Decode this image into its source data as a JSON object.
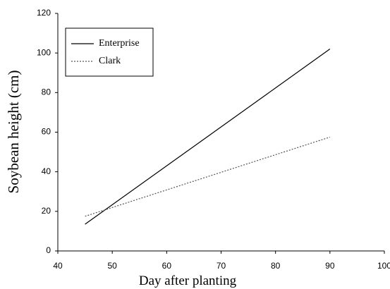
{
  "chart_data": {
    "type": "line",
    "x_label": "Day after planting",
    "y_label": "Soybean height (cm)",
    "series": [
      {
        "name": "Enterprise",
        "color": "#000000",
        "linestyle": "solid",
        "x": [
          45,
          90
        ],
        "values": [
          13.5,
          102
        ]
      },
      {
        "name": "Clark",
        "color": "#555555",
        "linestyle": "dotted",
        "x": [
          45,
          90
        ],
        "values": [
          17.5,
          57.5
        ]
      }
    ],
    "xlim": [
      40,
      100
    ],
    "xticks": [
      40,
      50,
      60,
      70,
      80,
      90,
      100
    ],
    "ylim": [
      0,
      120
    ],
    "yticks": [
      0,
      20,
      40,
      60,
      80,
      100,
      120
    ],
    "grid": false,
    "legend": "upper left"
  }
}
